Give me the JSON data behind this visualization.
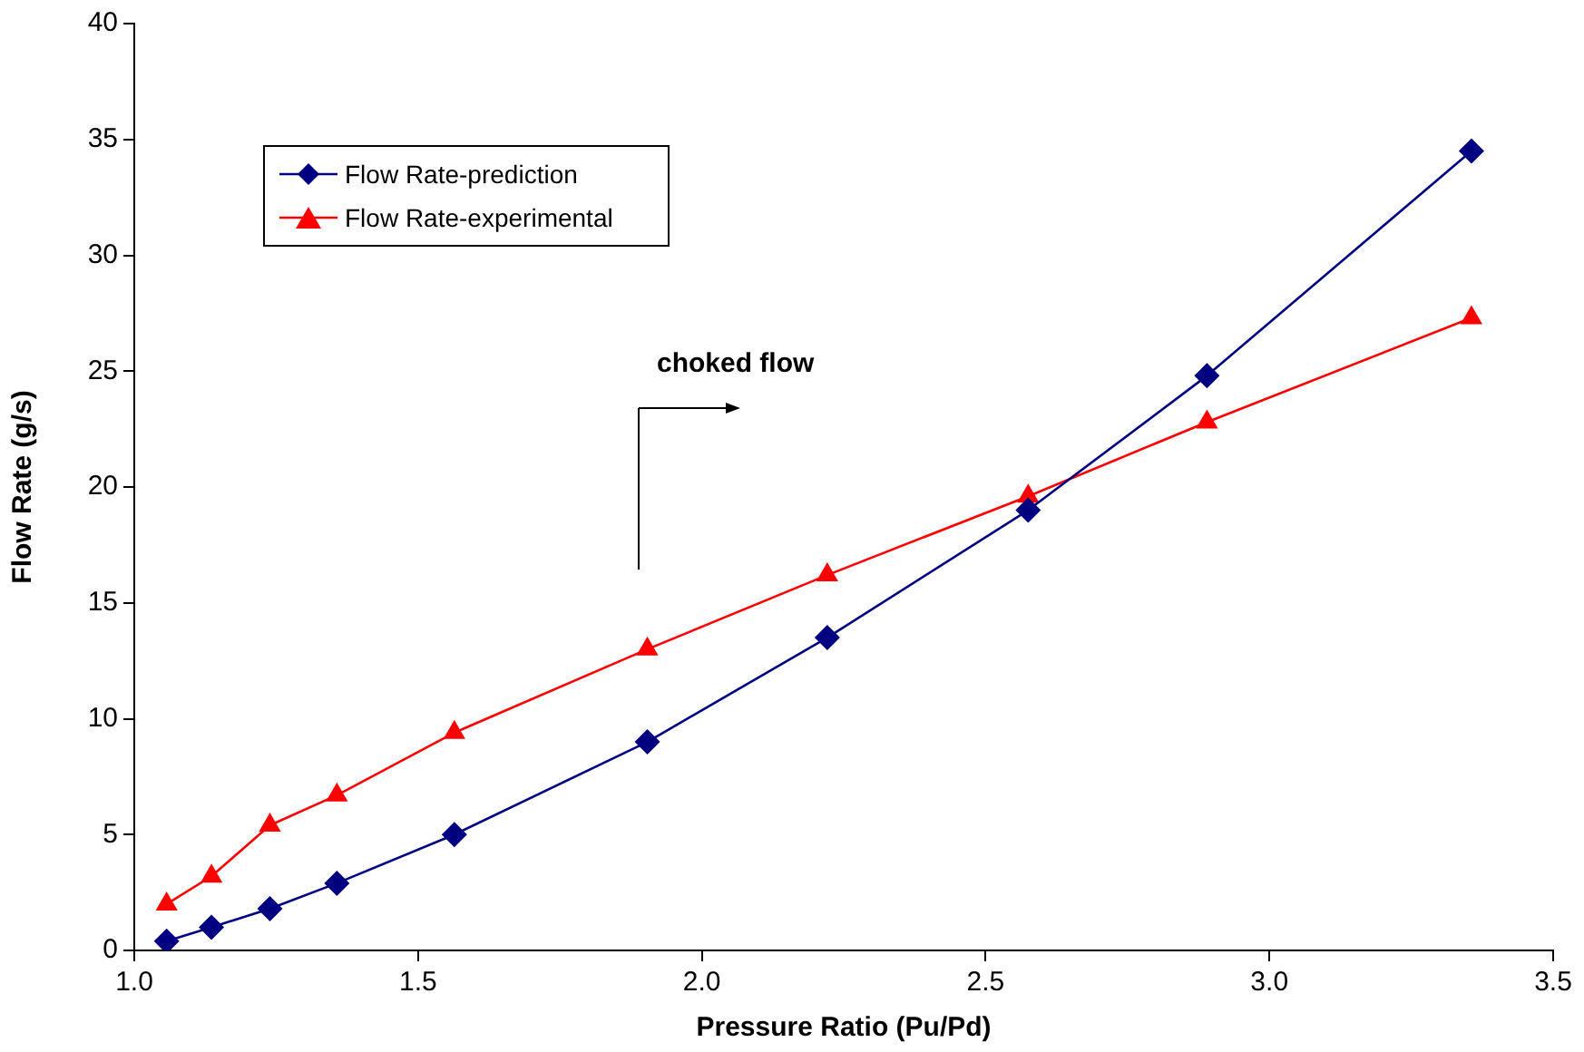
{
  "chart_data": {
    "type": "line",
    "xlabel": "Pressure Ratio (Pu/Pd)",
    "ylabel": "Flow Rate (g/s)",
    "x": [
      1.057,
      1.136,
      1.239,
      1.357,
      1.564,
      1.904,
      2.221,
      2.575,
      2.89,
      3.356
    ],
    "series": [
      {
        "name": "Flow Rate-prediction",
        "color": "#000080",
        "marker": "diamond",
        "values": [
          0.4,
          1.0,
          1.8,
          2.9,
          5.0,
          9.0,
          13.5,
          19.0,
          24.8,
          34.5
        ]
      },
      {
        "name": "Flow Rate-experimental",
        "color": "#ff0000",
        "marker": "triangle",
        "values": [
          2.0,
          3.2,
          5.4,
          6.7,
          9.4,
          13.0,
          16.2,
          19.6,
          22.8,
          27.3
        ]
      }
    ],
    "xlim": [
      1.0,
      3.5
    ],
    "xticks": [
      {
        "value": 1.0,
        "label": "1.0"
      },
      {
        "value": 1.5,
        "label": "1.5"
      },
      {
        "value": 2.0,
        "label": "2.0"
      },
      {
        "value": 2.5,
        "label": "2.5"
      },
      {
        "value": 3.0,
        "label": "3.0"
      },
      {
        "value": 3.5,
        "label": "3.5"
      }
    ],
    "ylim": [
      0,
      40
    ],
    "yticks": [
      0,
      5,
      10,
      15,
      20,
      25,
      30,
      35,
      40
    ],
    "grid": false,
    "legend": "top left",
    "annotations": [
      "choked flow"
    ]
  }
}
